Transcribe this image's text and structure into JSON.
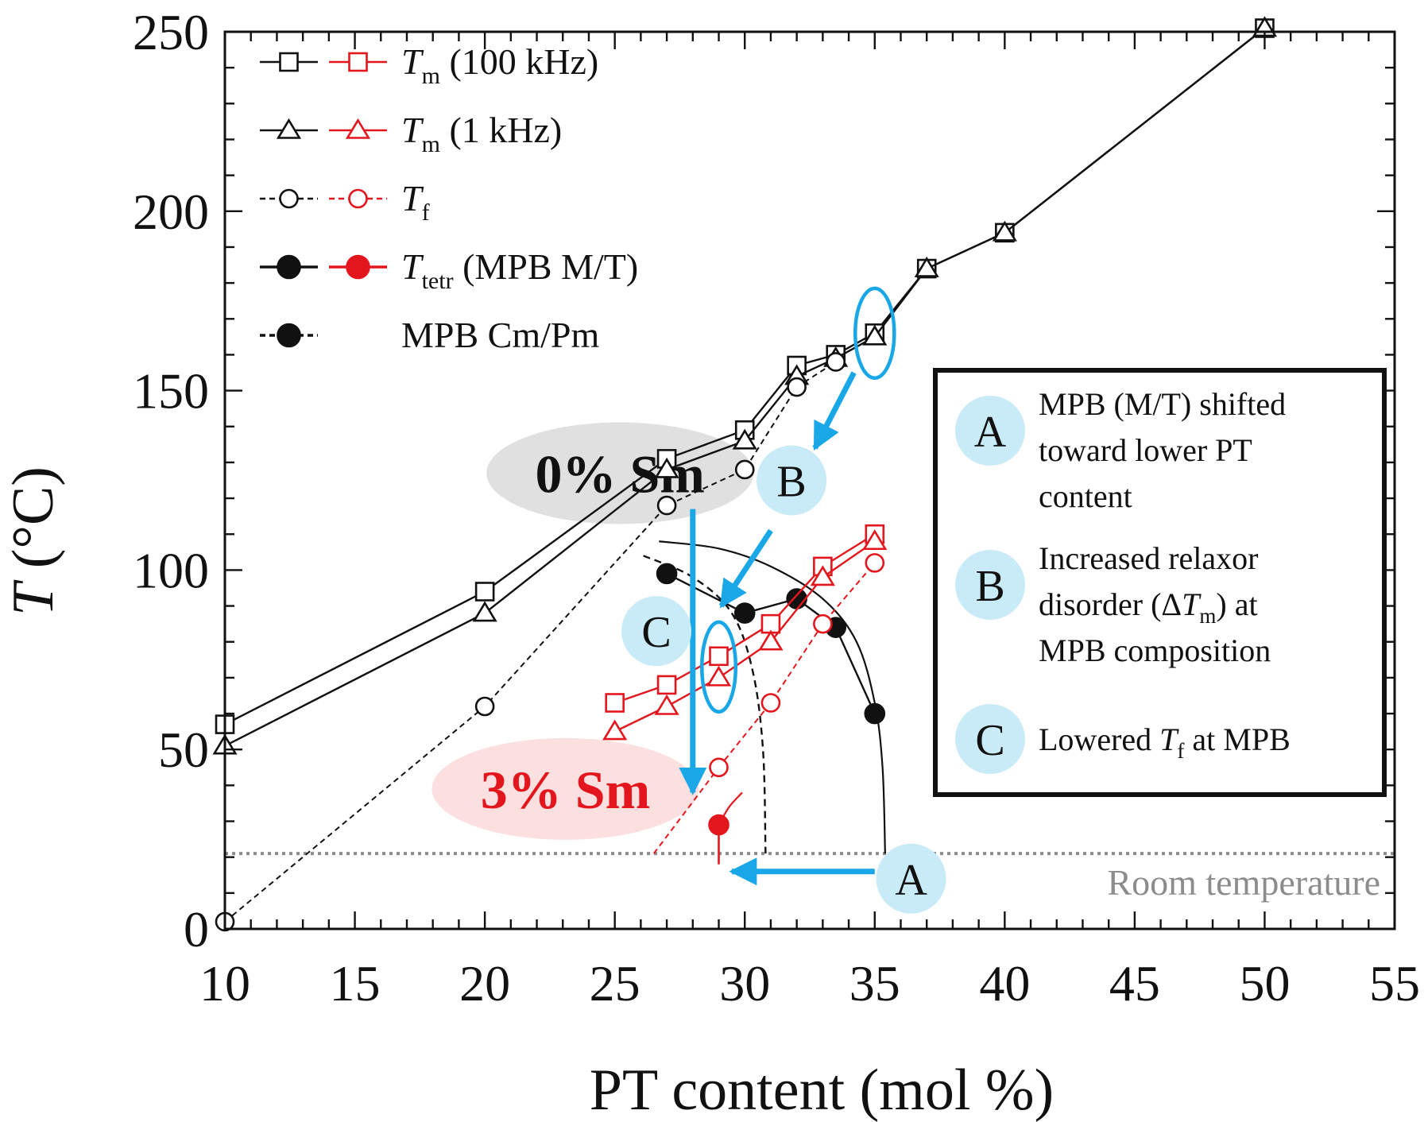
{
  "chart_data": {
    "type": "line",
    "xlabel": "PT content (mol %)",
    "ylabel_symbol": "T",
    "ylabel_unit": " (°C)",
    "xlim": [
      10,
      55
    ],
    "ylim": [
      0,
      250
    ],
    "x_ticks": [
      10,
      15,
      20,
      25,
      30,
      35,
      40,
      45,
      50,
      55
    ],
    "y_ticks": [
      0,
      50,
      100,
      150,
      200,
      250
    ],
    "colors": {
      "black": "#111111",
      "red": "#e4161d",
      "annotation": "#1aa7e8",
      "badge": "#c9eaf7",
      "room": "#8c8c8c"
    },
    "series": [
      {
        "group": "0% Sm",
        "key": "tm100k_black",
        "color": "#111111",
        "marker": "square",
        "line": "solid",
        "fill": "none",
        "x": [
          10,
          20,
          27,
          30,
          32,
          33.5,
          35,
          37,
          40,
          50
        ],
        "y": [
          57,
          94,
          131,
          139,
          157,
          160,
          166,
          184,
          194,
          251
        ]
      },
      {
        "group": "0% Sm",
        "key": "tm1k_black",
        "color": "#111111",
        "marker": "triangle",
        "line": "solid",
        "fill": "none",
        "x": [
          10,
          20,
          27,
          30,
          32,
          33.5,
          35,
          37,
          40,
          50
        ],
        "y": [
          51,
          88,
          128,
          136,
          154,
          159,
          165,
          184,
          194,
          251
        ]
      },
      {
        "group": "0% Sm",
        "key": "tf_black",
        "color": "#111111",
        "marker": "circle",
        "line": "dashed",
        "fill": "none",
        "x": [
          10,
          20,
          27,
          30,
          32,
          33.5
        ],
        "y": [
          2,
          62,
          118,
          128,
          151,
          158
        ]
      },
      {
        "group": "0% Sm",
        "key": "ttetr_black",
        "color": "#111111",
        "marker": "circle",
        "line": "solid",
        "fill": "filled",
        "x": [
          27,
          30,
          32,
          33.5,
          35
        ],
        "y": [
          99,
          88,
          92,
          84,
          60
        ]
      },
      {
        "group": "3% Sm",
        "key": "tm100k_red",
        "color": "#e4161d",
        "marker": "square",
        "line": "solid",
        "fill": "none",
        "x": [
          25,
          27,
          29,
          31,
          33,
          35
        ],
        "y": [
          63,
          68,
          76,
          85,
          101,
          110
        ]
      },
      {
        "group": "3% Sm",
        "key": "tm1k_red",
        "color": "#e4161d",
        "marker": "triangle",
        "line": "solid",
        "fill": "none",
        "x": [
          25,
          27,
          29,
          31,
          33,
          35
        ],
        "y": [
          55,
          62,
          70,
          80,
          98,
          108
        ]
      },
      {
        "group": "3% Sm",
        "key": "tf_red",
        "color": "#e4161d",
        "marker": "circle",
        "line": "dashed",
        "fill": "none",
        "x": [
          29,
          31,
          33,
          35
        ],
        "y": [
          45,
          63,
          85,
          102
        ]
      },
      {
        "group": "3% Sm",
        "key": "ttetr_red",
        "color": "#e4161d",
        "marker": "circle",
        "line": "none",
        "fill": "filled",
        "x": [
          29
        ],
        "y": [
          29
        ]
      }
    ],
    "phase_boundaries": {
      "mpb_mt_0sm": {
        "x": [
          26.7,
          29,
          31,
          33,
          34.3,
          35,
          35.3,
          35.4
        ],
        "y": [
          108,
          106,
          101,
          92,
          80,
          63,
          45,
          21
        ]
      },
      "mpb_cmpm_0sm": {
        "x": [
          26.1,
          28,
          29.5,
          30.3,
          30.7,
          30.8
        ],
        "y": [
          104,
          98,
          88,
          72,
          50,
          21
        ]
      },
      "tf_red_extension": {
        "x": [
          26.5,
          29
        ],
        "y": [
          21,
          45
        ]
      },
      "ttetr_red_curve": {
        "x": [
          29,
          29.4,
          29.9
        ],
        "y": [
          29,
          34,
          38
        ]
      },
      "ttetr_red_stem": {
        "x": [
          29,
          29
        ],
        "y": [
          29,
          18
        ]
      }
    },
    "room_temperature": {
      "y": 21,
      "label": "Room temperature"
    },
    "legend": [
      {
        "symbol": "T",
        "sub": "m",
        "rest": " (100 kHz)",
        "marker": "square",
        "line": "solid",
        "fill": "none",
        "pairs": true
      },
      {
        "symbol": "T",
        "sub": "m",
        "rest": " (1 kHz)",
        "marker": "triangle",
        "line": "solid",
        "fill": "none",
        "pairs": true
      },
      {
        "symbol": "T",
        "sub": "f",
        "rest": "",
        "marker": "circle",
        "line": "dashed",
        "fill": "none",
        "pairs": true
      },
      {
        "symbol": "T",
        "sub": "tetr",
        "rest": " (MPB M/T)",
        "marker": "circle",
        "line": "solid",
        "fill": "filled",
        "pairs": true
      },
      {
        "symbol": "",
        "sub": "",
        "rest": "MPB Cm/Pm",
        "marker": "circle",
        "line": "dashed",
        "fill": "filled",
        "pairs": false
      }
    ],
    "group_labels": [
      {
        "text": "0% Sm",
        "x": 25.2,
        "y": 127,
        "color": "#111111",
        "bg": "#e0e0e0"
      },
      {
        "text": "3% Sm",
        "x": 23.1,
        "y": 39,
        "color": "#e4161d",
        "bg": "#fbe0df"
      }
    ],
    "annotations": [
      {
        "letter": "A",
        "x": 36.4,
        "y": 14,
        "arrow_from": [
          35,
          16
        ],
        "arrow_to": [
          29.5,
          16
        ]
      },
      {
        "letter": "B",
        "x": 31.8,
        "y": 125,
        "arrow_from": [
          34.2,
          155
        ],
        "arrow_to": [
          32.7,
          134
        ]
      },
      {
        "letter": "C",
        "x": 26.6,
        "y": 83,
        "arrow_from": [
          28,
          117
        ],
        "arrow_to": [
          28,
          38
        ]
      }
    ],
    "extra_arrows": [
      {
        "from": [
          31,
          111
        ],
        "to": [
          29.1,
          90
        ]
      }
    ],
    "highlight_ellipses": [
      {
        "cx": 35,
        "cy": 166,
        "rx": 0.75,
        "ry": 12.5
      },
      {
        "cx": 29,
        "cy": 73,
        "rx": 0.65,
        "ry": 12.5
      }
    ],
    "info_box": [
      {
        "letter": "A",
        "lines": [
          [
            {
              "t": "MPB (M/T) shifted"
            }
          ],
          [
            {
              "t": "toward lower PT"
            }
          ],
          [
            {
              "t": "content"
            }
          ]
        ]
      },
      {
        "letter": "B",
        "lines": [
          [
            {
              "t": "Increased relaxor"
            }
          ],
          [
            {
              "t": "disorder (ΔT"
            },
            {
              "t": "m",
              "sub": true
            },
            {
              "t": ") at"
            }
          ],
          [
            {
              "t": "MPB composition"
            }
          ]
        ]
      },
      {
        "letter": "C",
        "lines": [
          [
            {
              "t": "Lowered T"
            },
            {
              "t": "f",
              "sub": true
            },
            {
              "t": " at MPB"
            }
          ]
        ]
      }
    ]
  }
}
